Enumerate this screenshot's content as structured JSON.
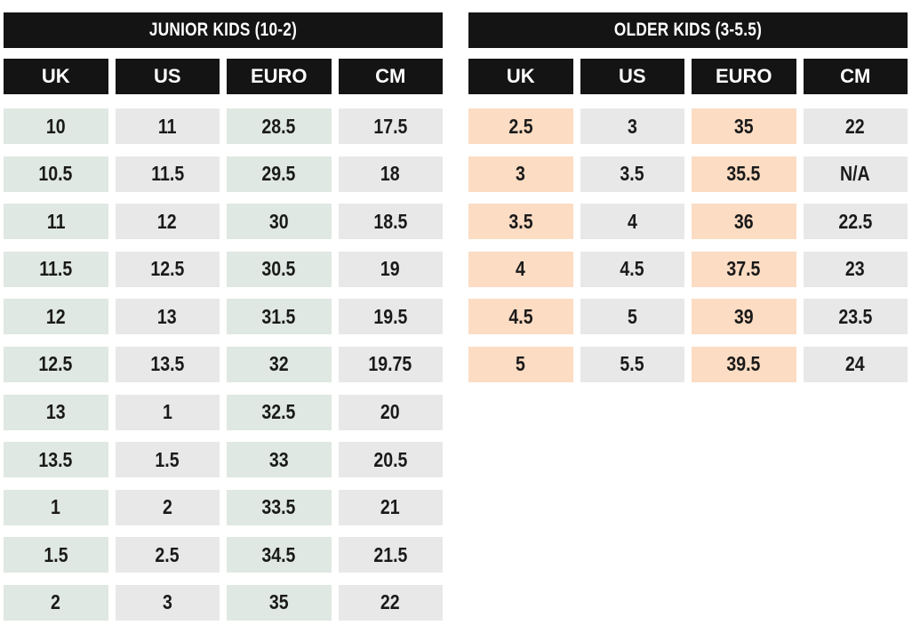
{
  "junior": {
    "title": "JUNIOR KIDS (10-2)",
    "headers": [
      "UK",
      "US",
      "EURO",
      "CM"
    ],
    "rows": [
      [
        "10",
        "11",
        "28.5",
        "17.5"
      ],
      [
        "10.5",
        "11.5",
        "29.5",
        "18"
      ],
      [
        "11",
        "12",
        "30",
        "18.5"
      ],
      [
        "11.5",
        "12.5",
        "30.5",
        "19"
      ],
      [
        "12",
        "13",
        "31.5",
        "19.5"
      ],
      [
        "12.5",
        "13.5",
        "32",
        "19.75"
      ],
      [
        "13",
        "1",
        "32.5",
        "20"
      ],
      [
        "13.5",
        "1.5",
        "33",
        "20.5"
      ],
      [
        "1",
        "2",
        "33.5",
        "21"
      ],
      [
        "1.5",
        "2.5",
        "34.5",
        "21.5"
      ],
      [
        "2",
        "3",
        "35",
        "22"
      ]
    ]
  },
  "older": {
    "title": "OLDER KIDS (3-5.5)",
    "headers": [
      "UK",
      "US",
      "EURO",
      "CM"
    ],
    "rows": [
      [
        "2.5",
        "3",
        "35",
        "22"
      ],
      [
        "3",
        "3.5",
        "35.5",
        "N/A"
      ],
      [
        "3.5",
        "4",
        "36",
        "22.5"
      ],
      [
        "4",
        "4.5",
        "37.5",
        "23"
      ],
      [
        "4.5",
        "5",
        "39",
        "23.5"
      ],
      [
        "5",
        "5.5",
        "39.5",
        "24"
      ]
    ]
  },
  "colors": {
    "header_bg": "#141414",
    "junior_accent": "#dfe8e2",
    "older_accent": "#fcdcc3",
    "neutral_cell": "#e8e8e8"
  }
}
